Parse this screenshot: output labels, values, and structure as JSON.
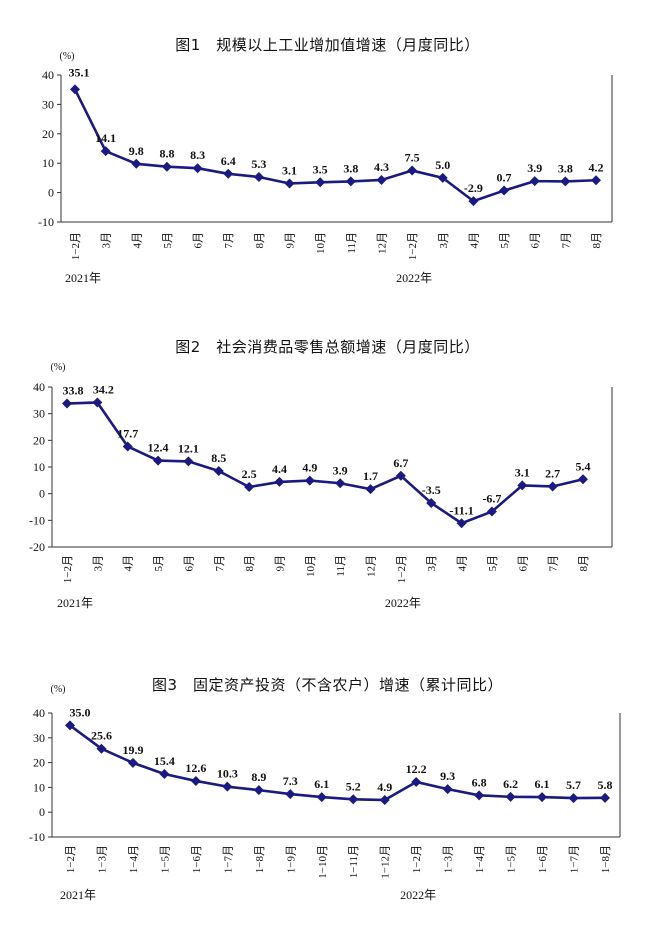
{
  "colors": {
    "line": "#1a1a80",
    "axis": "#333333"
  },
  "chart_data": [
    {
      "type": "line",
      "title": "图1　规模以上工业增加值增速（月度同比）",
      "ylabel": "(%)",
      "ylim": [
        -10,
        40
      ],
      "yticks": [
        40,
        30,
        20,
        10,
        0,
        -10
      ],
      "categories": [
        "1−2月",
        "3月",
        "4月",
        "5月",
        "6月",
        "7月",
        "8月",
        "9月",
        "10月",
        "11月",
        "12月",
        "1−2月",
        "3月",
        "4月",
        "5月",
        "6月",
        "7月",
        "8月"
      ],
      "year_labels": [
        {
          "index": 0,
          "text": "2021年"
        },
        {
          "index": 11,
          "text": "2022年"
        }
      ],
      "values": [
        35.1,
        14.1,
        9.8,
        8.8,
        8.3,
        6.4,
        5.3,
        3.1,
        3.5,
        3.8,
        4.3,
        7.5,
        5.0,
        -2.9,
        0.7,
        3.9,
        3.8,
        4.2
      ],
      "value_labels": [
        "35.1",
        "14.1",
        "9.8",
        "8.8",
        "8.3",
        "6.4",
        "5.3",
        "3.1",
        "3.5",
        "3.8",
        "4.3",
        "7.5",
        "5.0",
        "-2.9",
        "0.7",
        "3.9",
        "3.8",
        "4.2"
      ]
    },
    {
      "type": "line",
      "title": "图2　社会消费品零售总额增速（月度同比）",
      "ylabel": "(%)",
      "ylim": [
        -20,
        40
      ],
      "yticks": [
        40,
        30,
        20,
        10,
        0,
        -10,
        -20
      ],
      "categories": [
        "1−2月",
        "3月",
        "4月",
        "5月",
        "6月",
        "7月",
        "8月",
        "9月",
        "10月",
        "11月",
        "12月",
        "1−2月",
        "3月",
        "4月",
        "5月",
        "6月",
        "7月",
        "8月"
      ],
      "year_labels": [
        {
          "index": 0,
          "text": "2021年"
        },
        {
          "index": 11,
          "text": "2022年"
        }
      ],
      "values": [
        33.8,
        34.2,
        17.7,
        12.4,
        12.1,
        8.5,
        2.5,
        4.4,
        4.9,
        3.9,
        1.7,
        6.7,
        -3.5,
        -11.1,
        -6.7,
        3.1,
        2.7,
        5.4
      ],
      "value_labels": [
        "33.8",
        "34.2",
        "17.7",
        "12.4",
        "12.1",
        "8.5",
        "2.5",
        "4.4",
        "4.9",
        "3.9",
        "1.7",
        "6.7",
        "-3.5",
        "-11.1",
        "-6.7",
        "3.1",
        "2.7",
        "5.4"
      ]
    },
    {
      "type": "line",
      "title": "图3　固定资产投资（不含农户）增速（累计同比）",
      "ylabel": "(%)",
      "ylim": [
        -10,
        40
      ],
      "yticks": [
        40,
        30,
        20,
        10,
        0,
        -10
      ],
      "categories": [
        "1−2月",
        "1−3月",
        "1−4月",
        "1−5月",
        "1−6月",
        "1−7月",
        "1−8月",
        "1−9月",
        "1−10月",
        "1−11月",
        "1−12月",
        "1−2月",
        "1−3月",
        "1−4月",
        "1−5月",
        "1−6月",
        "1−7月",
        "1−8月"
      ],
      "year_labels": [
        {
          "index": 0,
          "text": "2021年"
        },
        {
          "index": 11,
          "text": "2022年"
        }
      ],
      "values": [
        35.0,
        25.6,
        19.9,
        15.4,
        12.6,
        10.3,
        8.9,
        7.3,
        6.1,
        5.2,
        4.9,
        12.2,
        9.3,
        6.8,
        6.2,
        6.1,
        5.7,
        5.8
      ],
      "value_labels": [
        "35.0",
        "25.6",
        "19.9",
        "15.4",
        "12.6",
        "10.3",
        "8.9",
        "7.3",
        "6.1",
        "5.2",
        "4.9",
        "12.2",
        "9.3",
        "6.8",
        "6.2",
        "6.1",
        "5.7",
        "5.8"
      ]
    }
  ]
}
